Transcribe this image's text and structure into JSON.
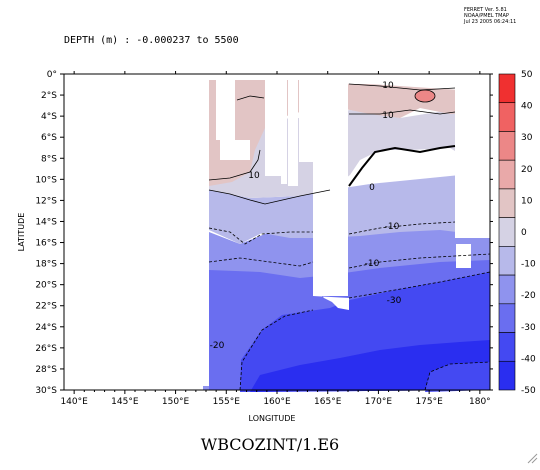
{
  "header": {
    "depth_label": "DEPTH (m) : -0.000237 to 5500",
    "stamp_lines": [
      "FERRET Ver. 5.81",
      "NOAA/PMEL TMAP",
      "Jul 23 2005 06:24:11"
    ]
  },
  "chart_data": {
    "type": "heatmap",
    "title": "WBCOZINT/1.E6",
    "xlabel": "LONGITUDE",
    "ylabel": "LATITUDE",
    "x_ticks": [
      "140°E",
      "145°E",
      "150°E",
      "155°E",
      "160°E",
      "165°E",
      "170°E",
      "175°E",
      "180°"
    ],
    "y_ticks": [
      "0°",
      "2°S",
      "4°S",
      "6°S",
      "8°S",
      "10°S",
      "12°S",
      "14°S",
      "16°S",
      "18°S",
      "20°S",
      "22°S",
      "24°S",
      "26°S",
      "28°S",
      "30°S"
    ],
    "xlim": [
      139,
      181
    ],
    "ylim": [
      -30,
      0
    ],
    "colorbar": {
      "levels": [
        -50,
        -40,
        -30,
        -20,
        -10,
        0,
        10,
        20,
        30,
        40,
        50
      ],
      "labels": [
        "50",
        "40",
        "30",
        "20",
        "10",
        "0",
        "-10",
        "-20",
        "-30",
        "-40",
        "-50"
      ],
      "colors": [
        "#2a2ef0",
        "#4449f2",
        "#6a6ef0",
        "#8f93ee",
        "#b7b9ea",
        "#d5d2e4",
        "#e2c5c5",
        "#e9a9a9",
        "#ec8787",
        "#f06262",
        "#f03030"
      ]
    },
    "contour_labels": [
      "10",
      "10",
      "10",
      "0",
      "-10",
      "-10",
      "-30",
      "-20"
    ],
    "regions": [
      {
        "name": "band-pos10",
        "value": 15
      },
      {
        "name": "band-0-10",
        "value": 5
      },
      {
        "name": "band-0to-10",
        "value": -5
      },
      {
        "name": "band-m10",
        "value": -15
      },
      {
        "name": "band-m20",
        "value": -25
      },
      {
        "name": "band-m30",
        "value": -35
      },
      {
        "name": "band-m40",
        "value": -45
      }
    ]
  }
}
